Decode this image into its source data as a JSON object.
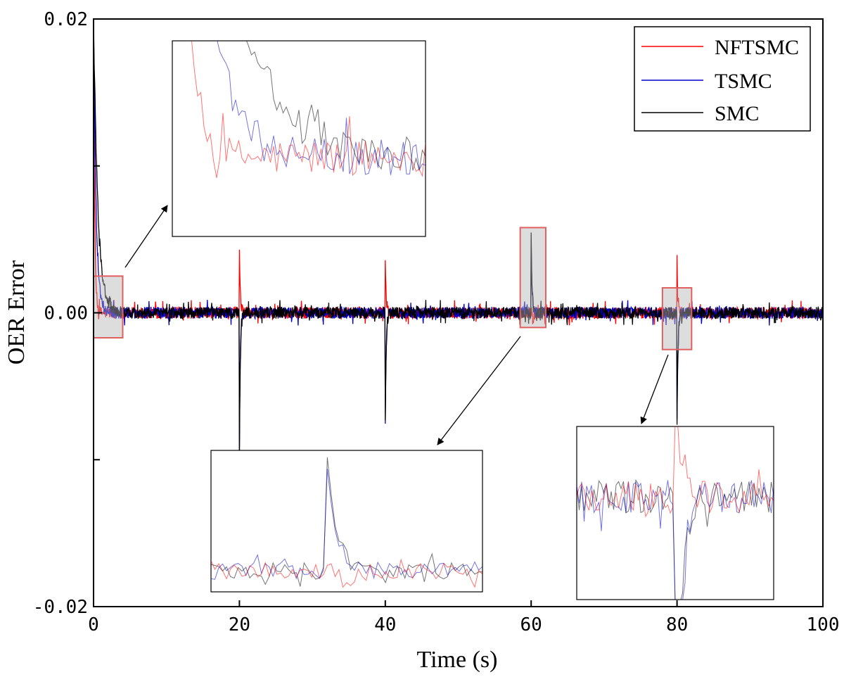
{
  "chart_data": {
    "type": "line",
    "title": "",
    "xlabel": "Time (s)",
    "ylabel": "OER Error",
    "xlim": [
      0,
      100
    ],
    "ylim": [
      -0.02,
      0.02
    ],
    "x_ticks": [
      "0",
      "20",
      "40",
      "60",
      "80",
      "100"
    ],
    "y_ticks": [
      "-0.02",
      "0.00",
      "0.02"
    ],
    "legend_position": "top-right",
    "noise_amplitude": 0.0004,
    "series": [
      {
        "name": "NFTSMC",
        "color": "#ff0000",
        "initial_peak": 0.02,
        "initial_decay_s": 0.15,
        "events": [
          {
            "t": 20,
            "value": 0.0045
          },
          {
            "t": 40,
            "value": 0.0037
          },
          {
            "t": 80,
            "value": 0.0036
          },
          {
            "t": 60.2,
            "value": -0.0008
          }
        ]
      },
      {
        "name": "TSMC",
        "color": "#0000cc",
        "initial_peak": 0.02,
        "initial_decay_s": 0.35,
        "events": [
          {
            "t": 20,
            "value": -0.0095
          },
          {
            "t": 40,
            "value": -0.0075
          },
          {
            "t": 60,
            "value": 0.0048
          },
          {
            "t": 80,
            "value": -0.0075
          }
        ]
      },
      {
        "name": "SMC",
        "color": "#000000",
        "initial_peak": 0.02,
        "initial_decay_s": 0.6,
        "events": [
          {
            "t": 20,
            "value": -0.0095
          },
          {
            "t": 40,
            "value": -0.0075
          },
          {
            "t": 60,
            "value": 0.0052
          },
          {
            "t": 80,
            "value": -0.0075
          }
        ]
      }
    ],
    "zoom_regions": [
      {
        "x_range": [
          0,
          4
        ],
        "y_range": [
          -0.0017,
          0.0025
        ],
        "inset": "top-left"
      },
      {
        "x_range": [
          58.5,
          62
        ],
        "y_range": [
          -0.001,
          0.0058
        ],
        "inset": "bottom-center"
      },
      {
        "x_range": [
          78,
          82
        ],
        "y_range": [
          -0.0025,
          0.0017
        ],
        "inset": "bottom-right"
      }
    ]
  }
}
